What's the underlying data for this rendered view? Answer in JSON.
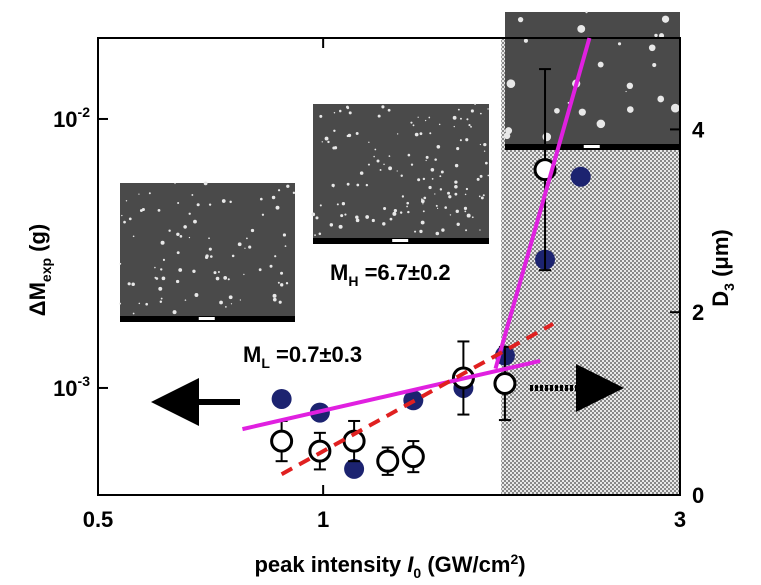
{
  "chart_data": {
    "type": "scatter",
    "xscale": "log",
    "yscale": "log",
    "xlim": [
      0.5,
      3
    ],
    "xticks": [
      0.5,
      1,
      3
    ],
    "ylim": [
      0.0004,
      0.02
    ],
    "yticks": [
      {
        "value": 0.001,
        "label": "10",
        "exponent": "-3"
      },
      {
        "value": 0.01,
        "label": "10",
        "exponent": "-2"
      }
    ],
    "y2lim": [
      0,
      5
    ],
    "y2ticks": [
      0,
      2,
      4
    ],
    "x_label": [
      "peak intensity ",
      "I",
      "0",
      " (GW/cm",
      "2",
      ")"
    ],
    "y_label": [
      "ΔM",
      "exp",
      " (g)"
    ],
    "y2_label": [
      "D",
      "3",
      " (μm)"
    ],
    "series": [
      {
        "marker": "filled",
        "color": "#1c2370",
        "x": [
          0.88,
          0.99,
          1.1,
          1.32,
          1.54,
          1.75,
          1.98,
          2.21
        ],
        "values": [
          0.00091,
          0.00081,
          0.0005,
          0.0009,
          0.001,
          0.00132,
          0.003,
          0.0061
        ]
      },
      {
        "marker": "open",
        "color": "#000000",
        "axis": "y2",
        "x": [
          0.88,
          0.99,
          1.1,
          1.22,
          1.32,
          1.54,
          1.75,
          1.98
        ],
        "values": [
          0.59,
          0.48,
          0.59,
          0.37,
          0.42,
          1.28,
          1.22,
          3.56
        ],
        "errors": [
          0.22,
          0.2,
          0.22,
          0.15,
          0.17,
          0.4,
          0.4,
          1.1
        ]
      }
    ],
    "fit_lines": [
      {
        "color": "#e020e0",
        "style": "solid",
        "x": [
          0.78,
          1.95
        ],
        "values": [
          0.000703,
          0.00126
        ]
      },
      {
        "color": "#e020e0",
        "style": "solid",
        "x": [
          1.7,
          2.27
        ],
        "values": [
          0.00118,
          0.02
        ]
      },
      {
        "color": "#e02020",
        "style": "dashed",
        "x": [
          0.88,
          2.03
        ],
        "values": [
          0.000478,
          0.00173
        ]
      }
    ],
    "shaded_x": [
      1.73,
      3
    ],
    "annotations": [
      {
        "text": "M",
        "sub": "H",
        "rest": " =6.7±0.2"
      },
      {
        "text": "M",
        "sub": "L",
        "rest": " =0.7±0.3"
      }
    ]
  }
}
